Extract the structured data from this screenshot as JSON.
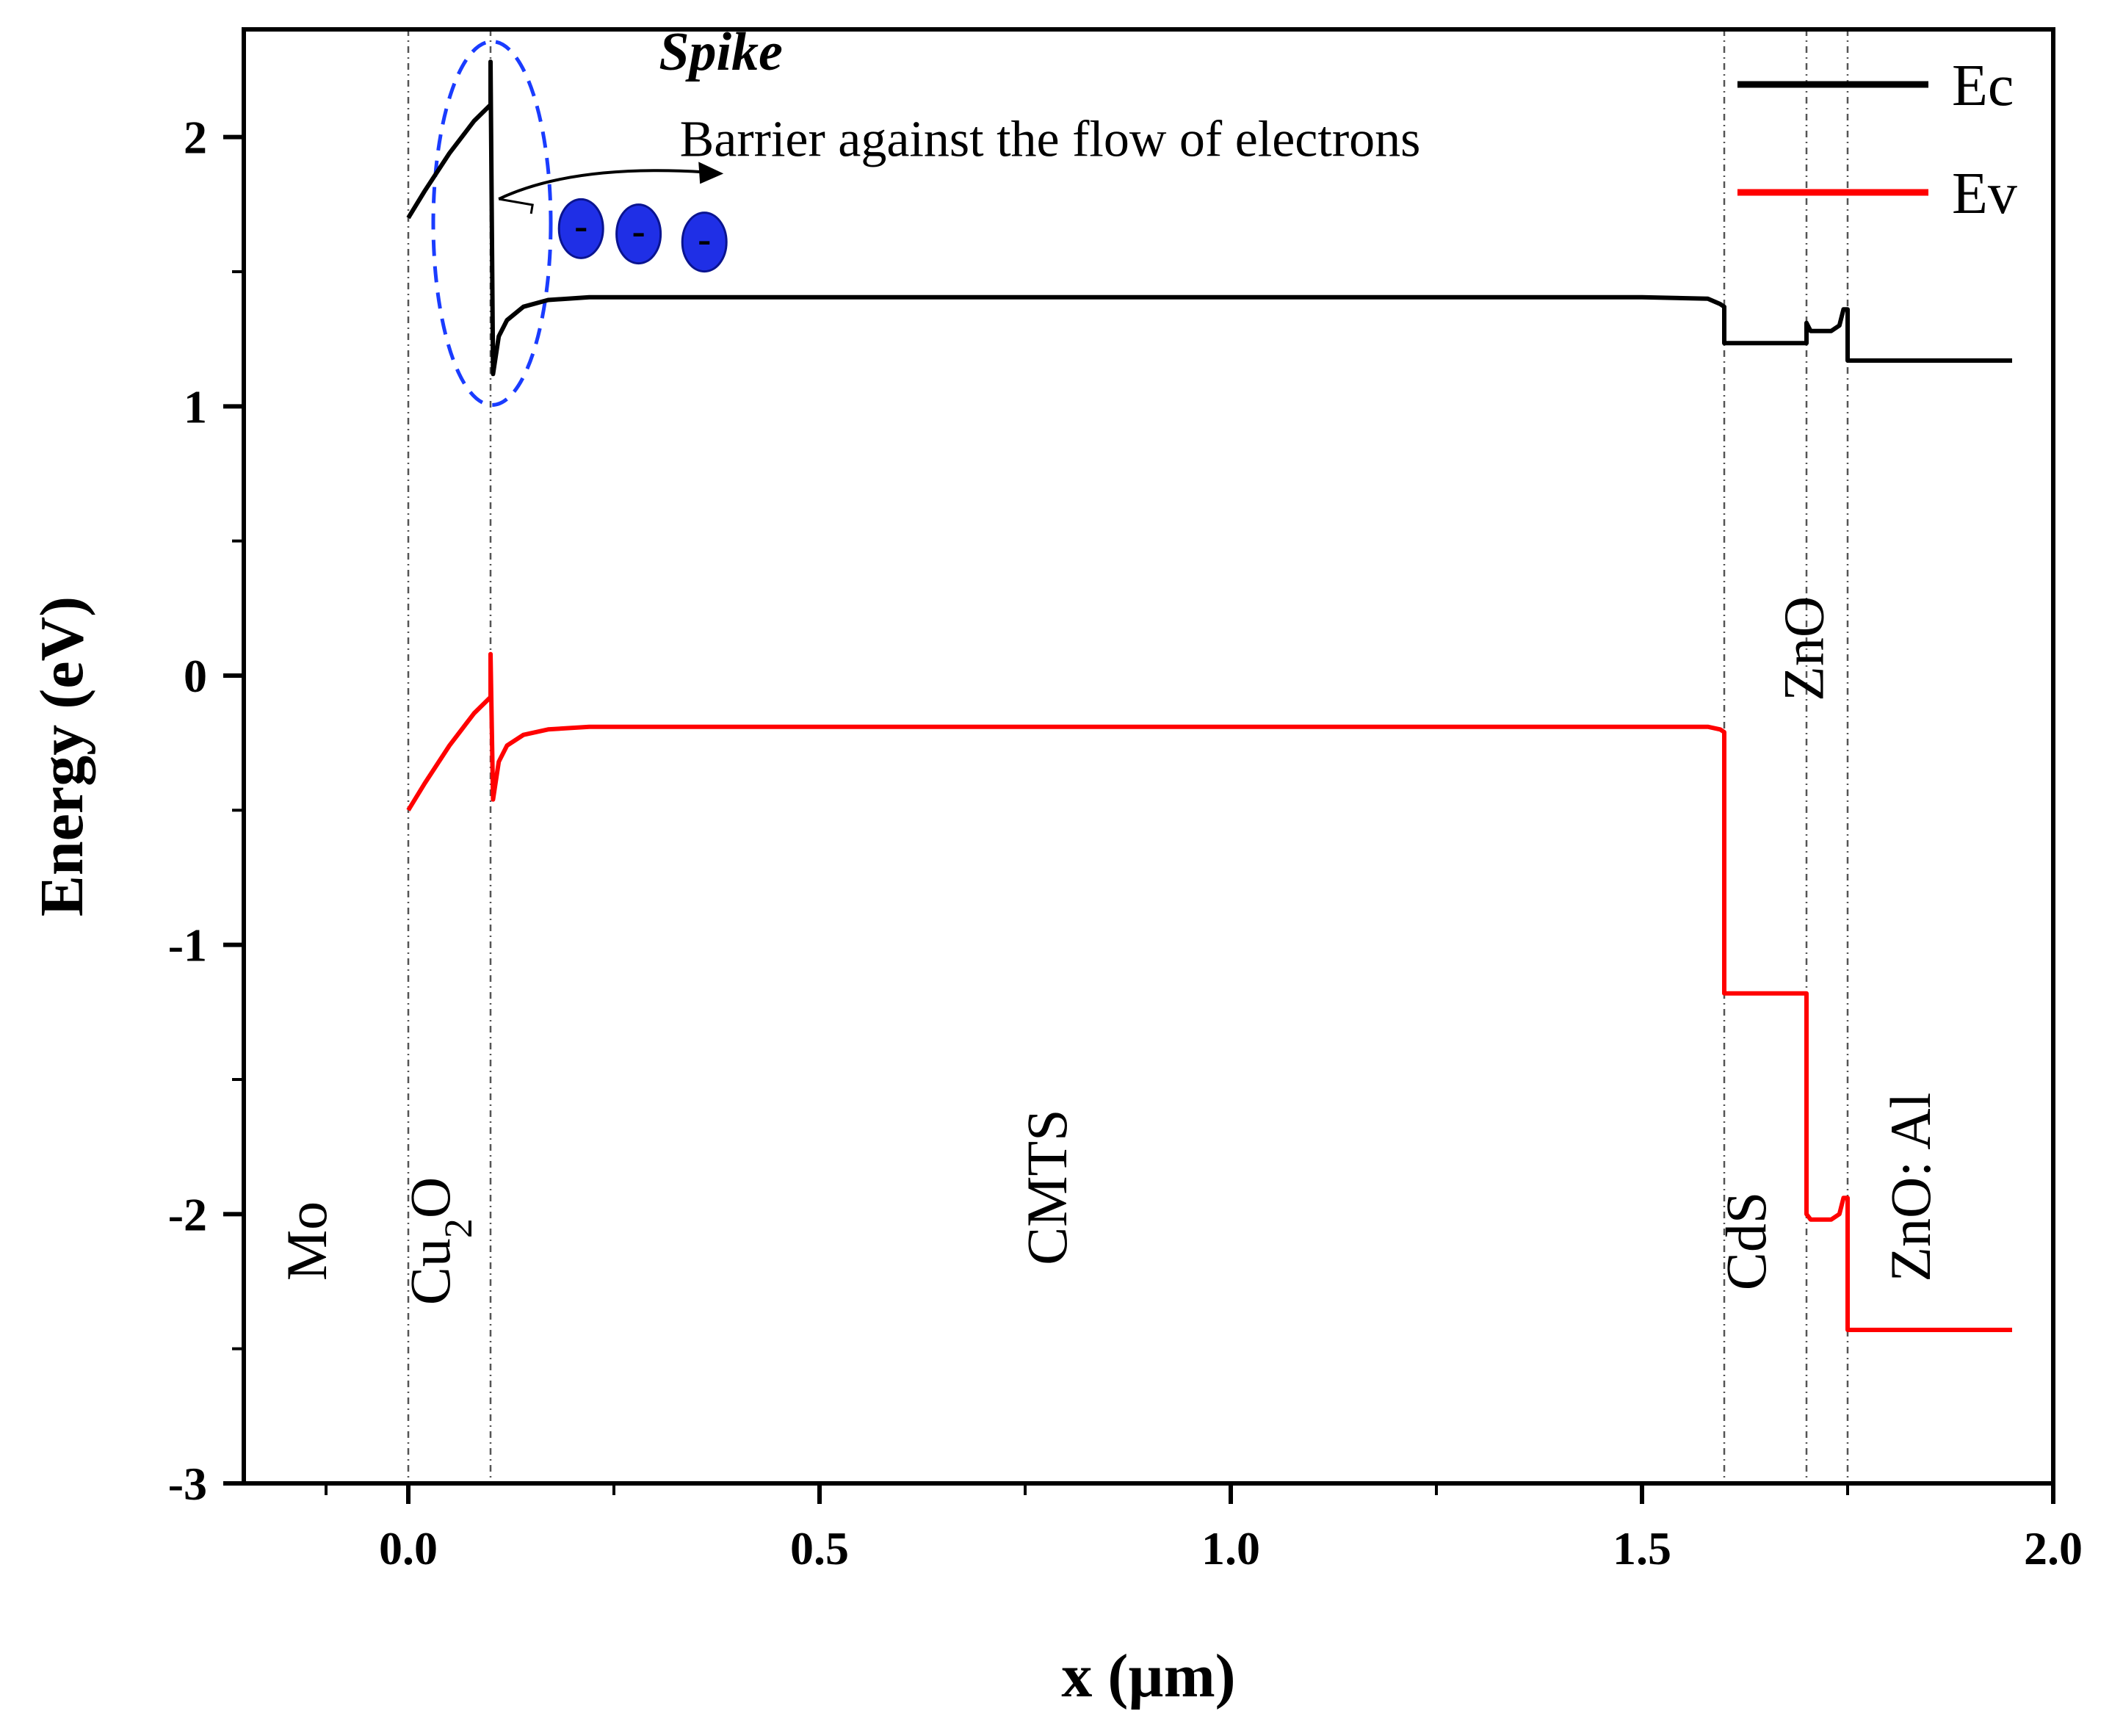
{
  "chart_data": {
    "type": "line",
    "title": "",
    "xlabel": "x (µm)",
    "ylabel": "Energy (eV)",
    "xlim": [
      -0.2,
      2.0
    ],
    "ylim": [
      -3,
      2.4
    ],
    "x_ticks": [
      0.0,
      0.5,
      1.0,
      1.5,
      2.0
    ],
    "x_tick_labels": [
      "0.0",
      "0.5",
      "1.0",
      "1.5",
      "2.0"
    ],
    "y_ticks": [
      -3,
      -2,
      -1,
      0,
      1,
      2
    ],
    "y_tick_labels": [
      "-3",
      "-2",
      "-1",
      "0",
      "1",
      "2"
    ],
    "interfaces_um": [
      0.0,
      0.1,
      1.6,
      1.7,
      1.75
    ],
    "legend": {
      "position": "top-right",
      "entries": [
        "Ec",
        "Ev"
      ]
    },
    "colors": {
      "Ec": "#000000",
      "Ev": "#ff0000",
      "highlight": "#1a3cff",
      "electron": "#1f2fe6"
    },
    "series": [
      {
        "name": "Ec",
        "x": [
          0.0,
          0.02,
          0.05,
          0.08,
          0.1,
          0.1,
          0.103,
          0.11,
          0.12,
          0.14,
          0.17,
          0.22,
          1.5,
          1.58,
          1.595,
          1.6,
          1.6,
          1.7,
          1.7,
          1.705,
          1.73,
          1.74,
          1.745,
          1.75,
          1.75,
          1.95
        ],
        "y": [
          1.7,
          1.8,
          1.94,
          2.06,
          2.12,
          2.28,
          1.12,
          1.26,
          1.32,
          1.37,
          1.395,
          1.405,
          1.405,
          1.4,
          1.38,
          1.37,
          1.235,
          1.235,
          1.31,
          1.28,
          1.28,
          1.3,
          1.36,
          1.36,
          1.17,
          1.17
        ]
      },
      {
        "name": "Ev",
        "x": [
          0.0,
          0.02,
          0.05,
          0.08,
          0.1,
          0.1,
          0.103,
          0.11,
          0.12,
          0.14,
          0.17,
          0.22,
          1.5,
          1.58,
          1.595,
          1.6,
          1.6,
          1.7,
          1.7,
          1.705,
          1.73,
          1.74,
          1.745,
          1.75,
          1.75,
          1.95
        ],
        "y": [
          -0.5,
          -0.4,
          -0.26,
          -0.14,
          -0.08,
          0.08,
          -0.46,
          -0.32,
          -0.26,
          -0.22,
          -0.2,
          -0.19,
          -0.19,
          -0.19,
          -0.2,
          -0.21,
          -1.18,
          -1.18,
          -2.0,
          -2.02,
          -2.02,
          -2.0,
          -1.94,
          -1.94,
          -2.43,
          -2.43
        ]
      }
    ],
    "layer_labels": [
      {
        "text": "Mo",
        "x": -0.1,
        "y": -2.1
      },
      {
        "text": "Cu",
        "sub": "2",
        "tail": "O",
        "x": 0.05,
        "y": -2.1
      },
      {
        "text": "CMTS",
        "x": 0.8,
        "y": -1.9
      },
      {
        "text": "CdS",
        "x": 1.65,
        "y": -2.1
      },
      {
        "text": "ZnO",
        "x": 1.72,
        "y": 0.1
      },
      {
        "text": "ZnO: Al",
        "x": 1.85,
        "y": -1.9
      }
    ],
    "annotations": {
      "title": "Spike",
      "text": "Barrier against the flow of electrons",
      "electron_symbol": "-"
    }
  }
}
